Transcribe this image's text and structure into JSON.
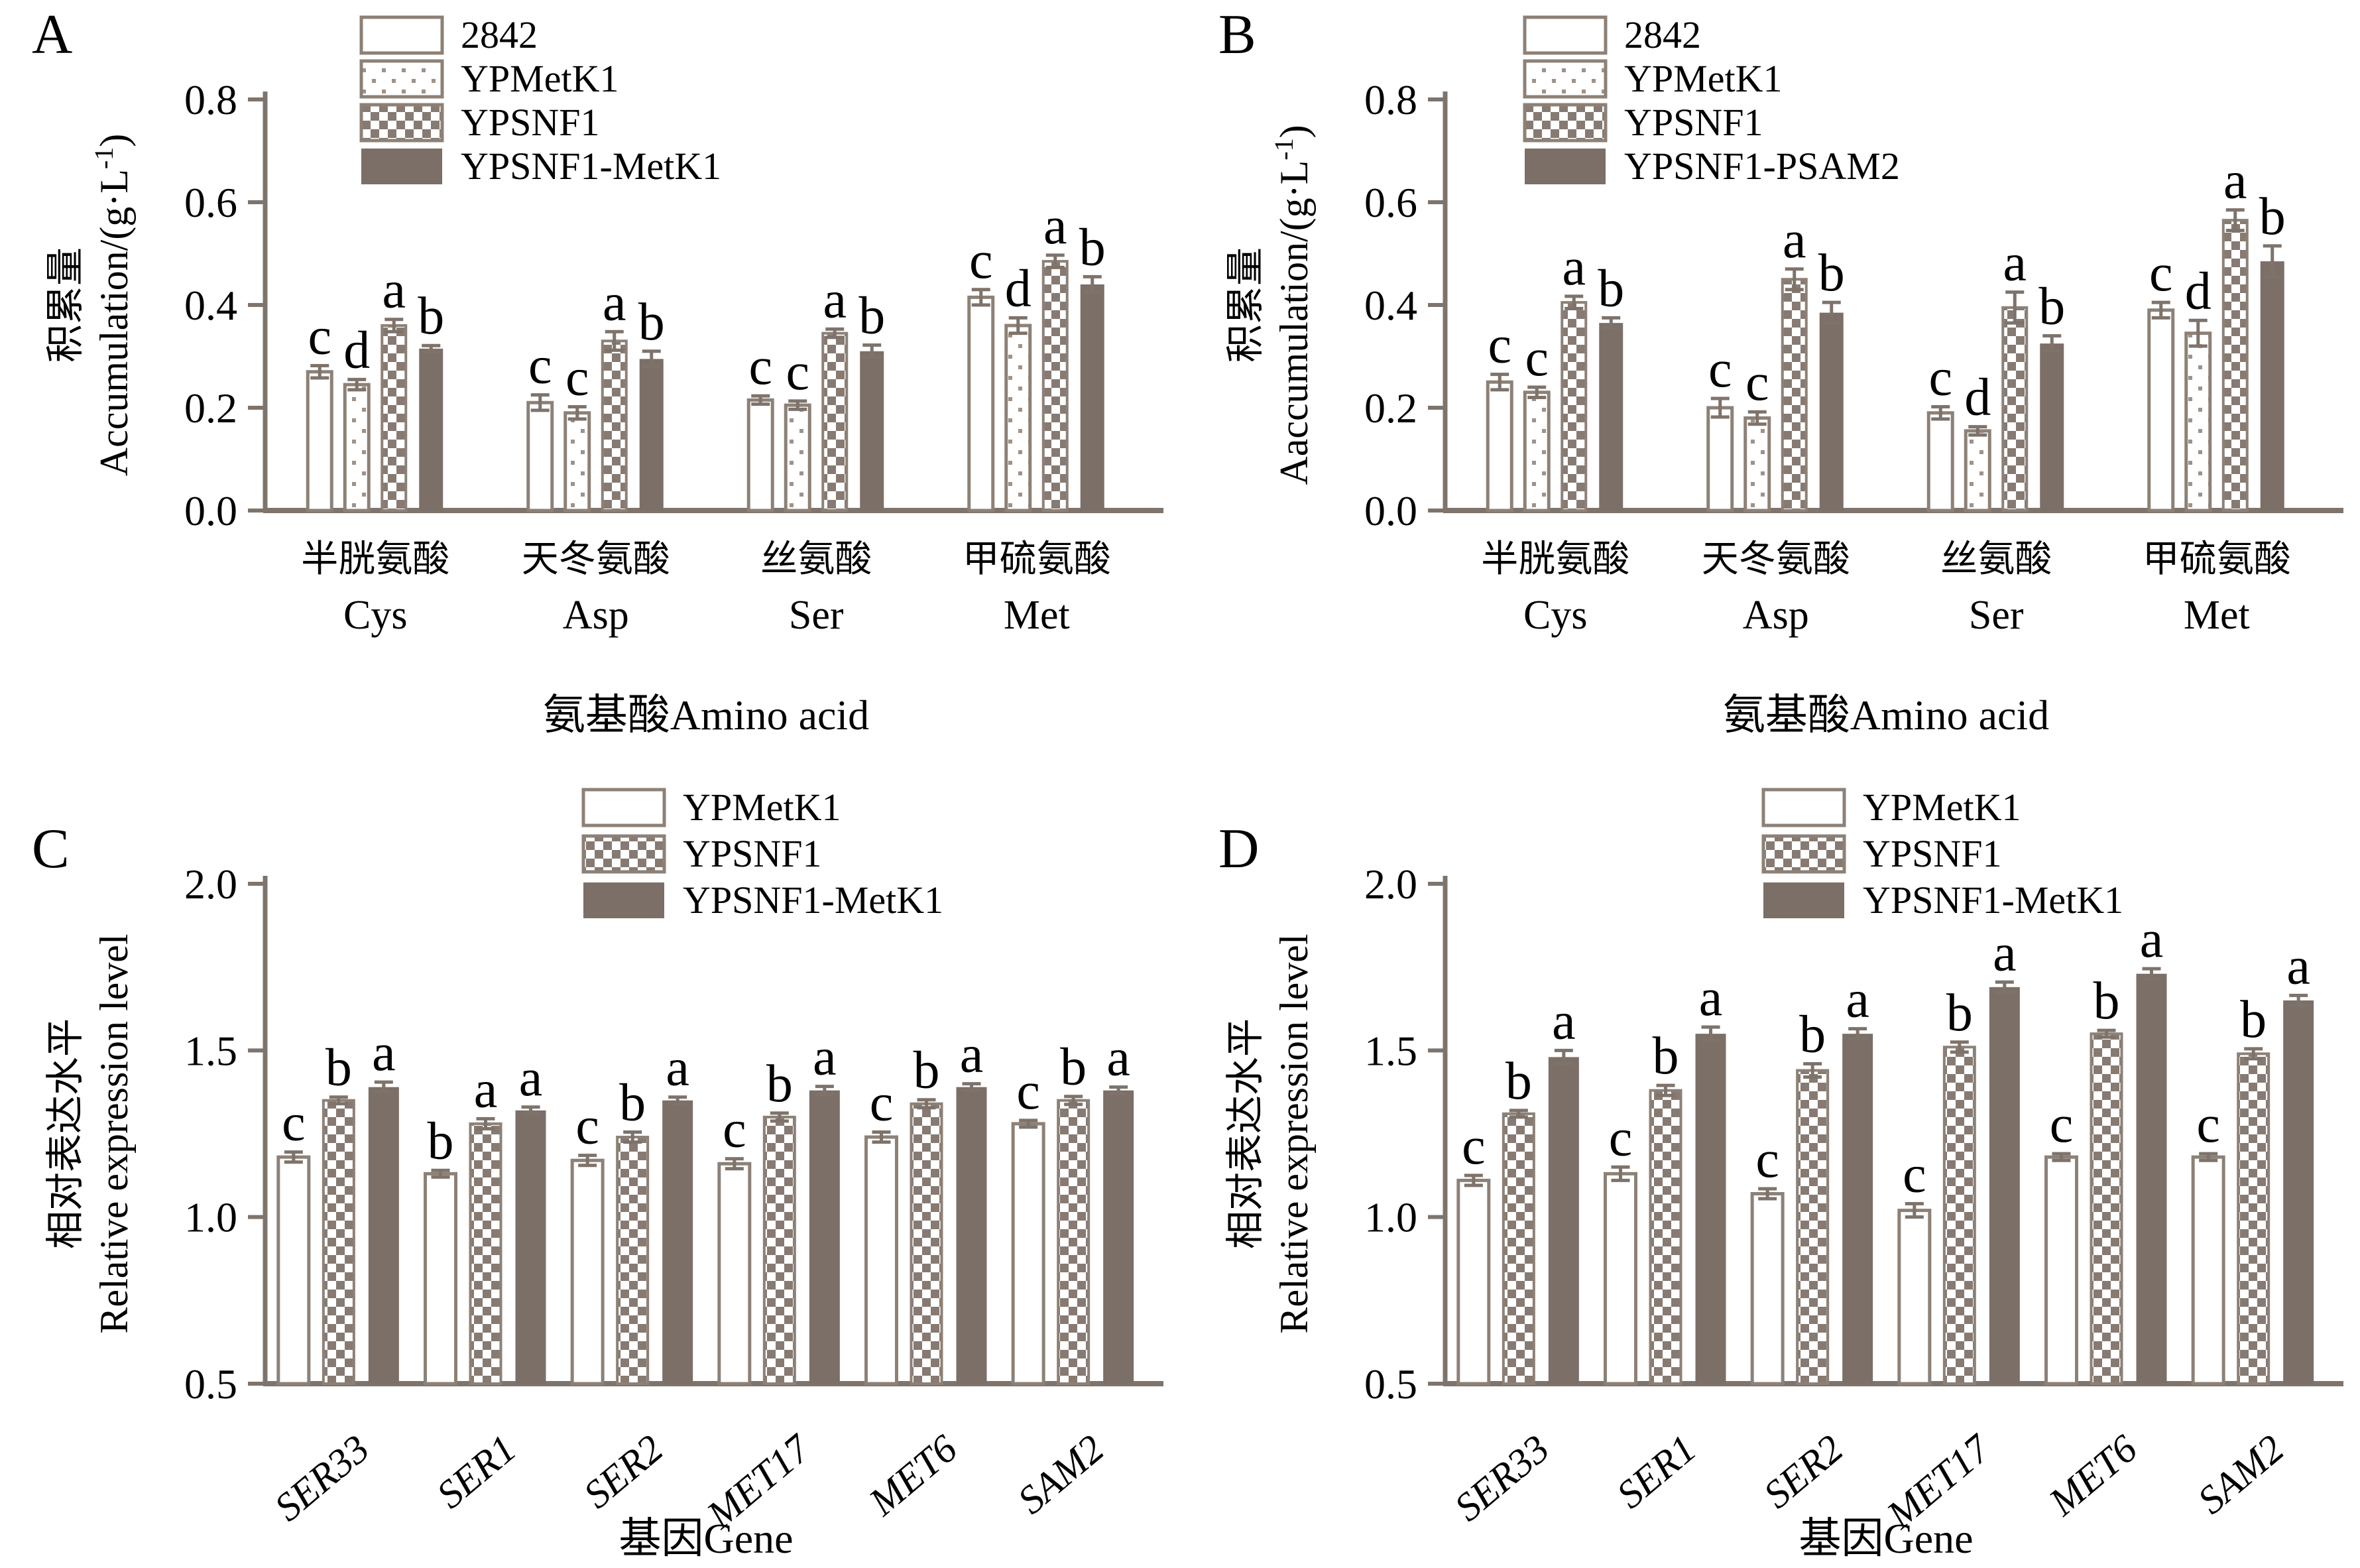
{
  "colors": {
    "bar_dark": "#7b6f67",
    "checker_square": "#867a72",
    "dot": "#a09288",
    "bar_outline": "#8d8177",
    "axis": "#7e746c",
    "error_bar": "#7e736b",
    "text": "#000000",
    "background": "#ffffff"
  },
  "chart_data": [
    {
      "panel_label": "A",
      "type": "bar",
      "title": "",
      "ylabel_cn": "积累量",
      "ylabel_en": "Accumulation/(g·L⁻¹)",
      "xlabel": "氨基酸Amino acid",
      "ylim": [
        0,
        0.8
      ],
      "yticks": [
        "0.0",
        "0.2",
        "0.4",
        "0.6",
        "0.8"
      ],
      "categories_cn": [
        "半胱氨酸",
        "天冬氨酸",
        "丝氨酸",
        "甲硫氨酸"
      ],
      "categories_en": [
        "Cys",
        "Asp",
        "Ser",
        "Met"
      ],
      "categories_italic": false,
      "grid": false,
      "legend_position": "top-left-inside",
      "series": [
        {
          "name": "2842",
          "pattern": "plain",
          "values": [
            0.27,
            0.21,
            0.215,
            0.415
          ],
          "errors": [
            0.012,
            0.015,
            0.008,
            0.015
          ],
          "sig_letters": [
            "c",
            "c",
            "c",
            "c"
          ]
        },
        {
          "name": "YPMetK1",
          "pattern": "dots",
          "values": [
            0.245,
            0.19,
            0.205,
            0.36
          ],
          "errors": [
            0.01,
            0.012,
            0.008,
            0.015
          ],
          "sig_letters": [
            "d",
            "c",
            "c",
            "d"
          ]
        },
        {
          "name": "YPSNF1",
          "pattern": "checker",
          "values": [
            0.36,
            0.33,
            0.345,
            0.485
          ],
          "errors": [
            0.012,
            0.018,
            0.008,
            0.012
          ],
          "sig_letters": [
            "a",
            "a",
            "a",
            "a"
          ]
        },
        {
          "name": "YPSNF1-MetK1",
          "pattern": "solid",
          "values": [
            0.315,
            0.295,
            0.31,
            0.44
          ],
          "errors": [
            0.006,
            0.015,
            0.012,
            0.015
          ],
          "sig_letters": [
            "b",
            "b",
            "b",
            "b"
          ]
        }
      ]
    },
    {
      "panel_label": "B",
      "type": "bar",
      "title": "",
      "ylabel_cn": "积累量",
      "ylabel_en": "Aaccumulation/(g·L⁻¹)",
      "xlabel": "氨基酸Amino acid",
      "ylim": [
        0,
        0.8
      ],
      "yticks": [
        "0.0",
        "0.2",
        "0.4",
        "0.6",
        "0.8"
      ],
      "categories_cn": [
        "半胱氨酸",
        "天冬氨酸",
        "丝氨酸",
        "甲硫氨酸"
      ],
      "categories_en": [
        "Cys",
        "Asp",
        "Ser",
        "Met"
      ],
      "categories_italic": false,
      "grid": false,
      "legend_position": "top-left-inside",
      "series": [
        {
          "name": "2842",
          "pattern": "plain",
          "values": [
            0.25,
            0.2,
            0.19,
            0.39
          ],
          "errors": [
            0.015,
            0.018,
            0.012,
            0.015
          ],
          "sig_letters": [
            "c",
            "c",
            "c",
            "c"
          ]
        },
        {
          "name": "YPMetK1",
          "pattern": "dots",
          "values": [
            0.23,
            0.18,
            0.155,
            0.345
          ],
          "errors": [
            0.01,
            0.012,
            0.008,
            0.025
          ],
          "sig_letters": [
            "c",
            "c",
            "d",
            "d"
          ]
        },
        {
          "name": "YPSNF1",
          "pattern": "checker",
          "values": [
            0.405,
            0.45,
            0.395,
            0.565
          ],
          "errors": [
            0.012,
            0.02,
            0.03,
            0.02
          ],
          "sig_letters": [
            "a",
            "a",
            "a",
            "a"
          ]
        },
        {
          "name": "YPSNF1-PSAM2",
          "pattern": "solid",
          "values": [
            0.365,
            0.385,
            0.325,
            0.485
          ],
          "errors": [
            0.01,
            0.02,
            0.015,
            0.03
          ],
          "sig_letters": [
            "b",
            "b",
            "b",
            "b"
          ]
        }
      ]
    },
    {
      "panel_label": "C",
      "type": "bar",
      "title": "",
      "ylabel_cn": "相对表达水平",
      "ylabel_en": "Relative expression level",
      "xlabel": "基因Gene",
      "ylim": [
        0.5,
        2.0
      ],
      "yticks": [
        "0.5",
        "1.0",
        "1.5",
        "2.0"
      ],
      "categories": [
        "SER33",
        "SER1",
        "SER2",
        "MET17",
        "MET6",
        "SAM2"
      ],
      "categories_italic": true,
      "grid": false,
      "legend_position": "top-left-inside",
      "series": [
        {
          "name": "YPMetK1",
          "pattern": "plain",
          "values": [
            1.18,
            1.13,
            1.17,
            1.16,
            1.24,
            1.28
          ],
          "errors": [
            0.015,
            0.01,
            0.015,
            0.015,
            0.015,
            0.01
          ],
          "sig_letters": [
            "c",
            "b",
            "c",
            "c",
            "c",
            "c"
          ]
        },
        {
          "name": "YPSNF1",
          "pattern": "checker",
          "values": [
            1.35,
            1.28,
            1.24,
            1.3,
            1.34,
            1.35
          ],
          "errors": [
            0.01,
            0.015,
            0.015,
            0.012,
            0.012,
            0.012
          ],
          "sig_letters": [
            "b",
            "a",
            "b",
            "b",
            "b",
            "b"
          ]
        },
        {
          "name": "YPSNF1-MetK1",
          "pattern": "solid",
          "values": [
            1.39,
            1.32,
            1.35,
            1.38,
            1.39,
            1.38
          ],
          "errors": [
            0.015,
            0.01,
            0.01,
            0.012,
            0.01,
            0.01
          ],
          "sig_letters": [
            "a",
            "a",
            "a",
            "a",
            "a",
            "a"
          ]
        }
      ]
    },
    {
      "panel_label": "D",
      "type": "bar",
      "title": "",
      "ylabel_cn": "相对表达水平",
      "ylabel_en": "Relative expression level",
      "xlabel": "基因Gene",
      "ylim": [
        0.5,
        2.0
      ],
      "yticks": [
        "0.5",
        "1.0",
        "1.5",
        "2.0"
      ],
      "categories": [
        "SER33",
        "SER1",
        "SER2",
        "MET17",
        "MET6",
        "SAM2"
      ],
      "categories_italic": true,
      "grid": false,
      "legend_position": "top-left-inside",
      "series": [
        {
          "name": "YPMetK1",
          "pattern": "plain",
          "values": [
            1.11,
            1.13,
            1.07,
            1.02,
            1.18,
            1.18
          ],
          "errors": [
            0.015,
            0.02,
            0.015,
            0.02,
            0.01,
            0.01
          ],
          "sig_letters": [
            "c",
            "c",
            "c",
            "c",
            "c",
            "c"
          ]
        },
        {
          "name": "YPSNF1",
          "pattern": "checker",
          "values": [
            1.31,
            1.38,
            1.44,
            1.51,
            1.55,
            1.49
          ],
          "errors": [
            0.01,
            0.015,
            0.02,
            0.015,
            0.01,
            0.015
          ],
          "sig_letters": [
            "b",
            "b",
            "b",
            "b",
            "b",
            "b"
          ]
        },
        {
          "name": "YPSNF1-MetK1",
          "pattern": "solid",
          "values": [
            1.48,
            1.55,
            1.55,
            1.69,
            1.73,
            1.65
          ],
          "errors": [
            0.02,
            0.02,
            0.015,
            0.015,
            0.015,
            0.015
          ],
          "sig_letters": [
            "a",
            "a",
            "a",
            "a",
            "a",
            "a"
          ]
        }
      ]
    }
  ]
}
